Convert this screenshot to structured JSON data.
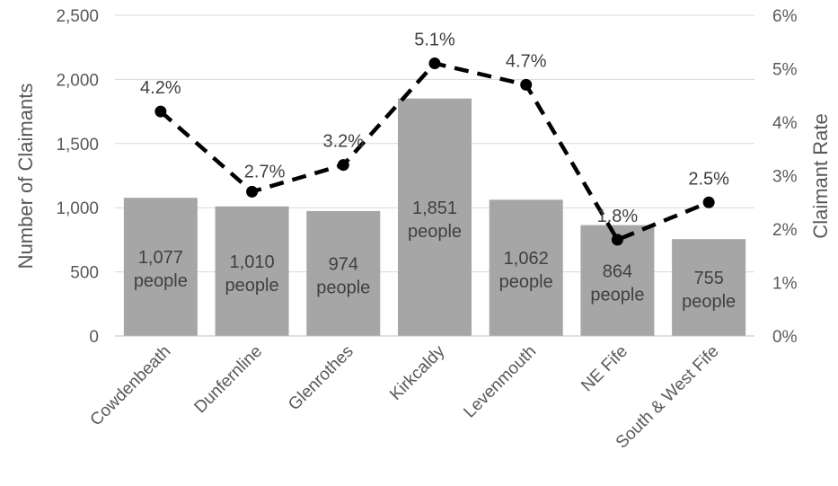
{
  "chart_data": {
    "type": "bar",
    "categories": [
      "Cowdenbeath",
      "Dunfernline",
      "Glenrothes",
      "Kirkcaldy",
      "Levenmouth",
      "NE Fife",
      "South & West Fife"
    ],
    "series": [
      {
        "type": "bar",
        "axis": "left",
        "values": [
          1077,
          1010,
          974,
          1851,
          1062,
          864,
          755
        ],
        "labels": [
          [
            "1,077",
            "people"
          ],
          [
            "1,010",
            "people"
          ],
          [
            "974",
            "people"
          ],
          [
            "1,851",
            "people"
          ],
          [
            "1,062",
            "people"
          ],
          [
            "864",
            "people"
          ],
          [
            "755",
            "people"
          ]
        ],
        "color": "#a6a6a6"
      },
      {
        "type": "line",
        "axis": "right",
        "values": [
          4.2,
          2.7,
          3.2,
          5.1,
          4.7,
          1.8,
          2.5
        ],
        "labels": [
          "4.2%",
          "2.7%",
          "3.2%",
          "5.1%",
          "4.7%",
          "1.8%",
          "2.5%"
        ],
        "color": "#000000",
        "line_style": "dashed",
        "markers": "circle"
      }
    ],
    "ylabel": "Number of Claimants",
    "y2label": "Claimant Rate",
    "ylim": [
      0,
      2500
    ],
    "y2lim": [
      0,
      6
    ],
    "yticks": [
      "0",
      "500",
      "1,000",
      "1,500",
      "2,000",
      "2,500"
    ],
    "y2ticks": [
      "0%",
      "1%",
      "2%",
      "3%",
      "4%",
      "5%",
      "6%"
    ],
    "grid": true,
    "legend": "none"
  }
}
